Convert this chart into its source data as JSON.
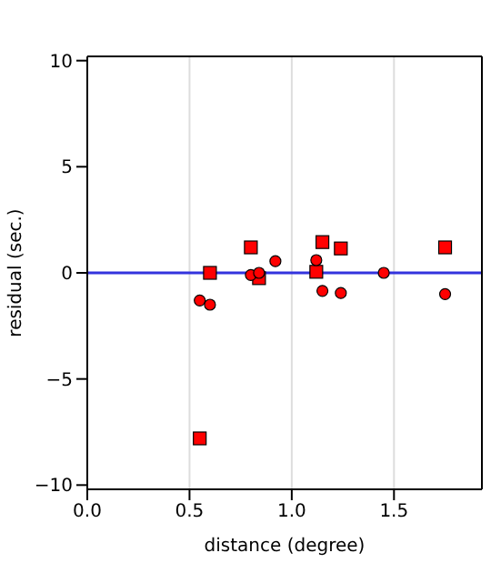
{
  "chart_data": {
    "type": "scatter",
    "xlabel": "distance (degree)",
    "ylabel": "residual (sec.)",
    "xlim": [
      0,
      1.93
    ],
    "xticks": [
      {
        "value": 0,
        "label": "0.0"
      },
      {
        "value": 0.5,
        "label": "0.5"
      },
      {
        "value": 1,
        "label": "1.0"
      },
      {
        "value": 1.5,
        "label": "1.5"
      }
    ],
    "ylim": [
      -10.2,
      10.2
    ],
    "yticks": [
      -10,
      -5,
      0,
      5,
      10
    ],
    "grid": "x",
    "series": [
      {
        "color": "#ff0000",
        "marker": "square",
        "x": [
          0.6,
          0.8,
          0.84,
          1.12,
          1.15,
          1.24,
          1.75,
          0.55
        ],
        "values": [
          0,
          1.2,
          -0.25,
          0.05,
          1.45,
          1.15,
          1.2,
          -7.8
        ]
      },
      {
        "color": "#ff0000",
        "marker": "circle",
        "x": [
          0.55,
          0.6,
          0.8,
          0.84,
          0.92,
          1.12,
          1.15,
          1.24,
          1.45,
          1.75
        ],
        "values": [
          -1.3,
          -1.5,
          -0.1,
          0,
          0.55,
          0.6,
          -0.85,
          -0.95,
          0,
          -1.0
        ]
      }
    ],
    "ref_lines": [
      {
        "axis": "y",
        "value": 0,
        "color": "#3333dd"
      }
    ]
  }
}
